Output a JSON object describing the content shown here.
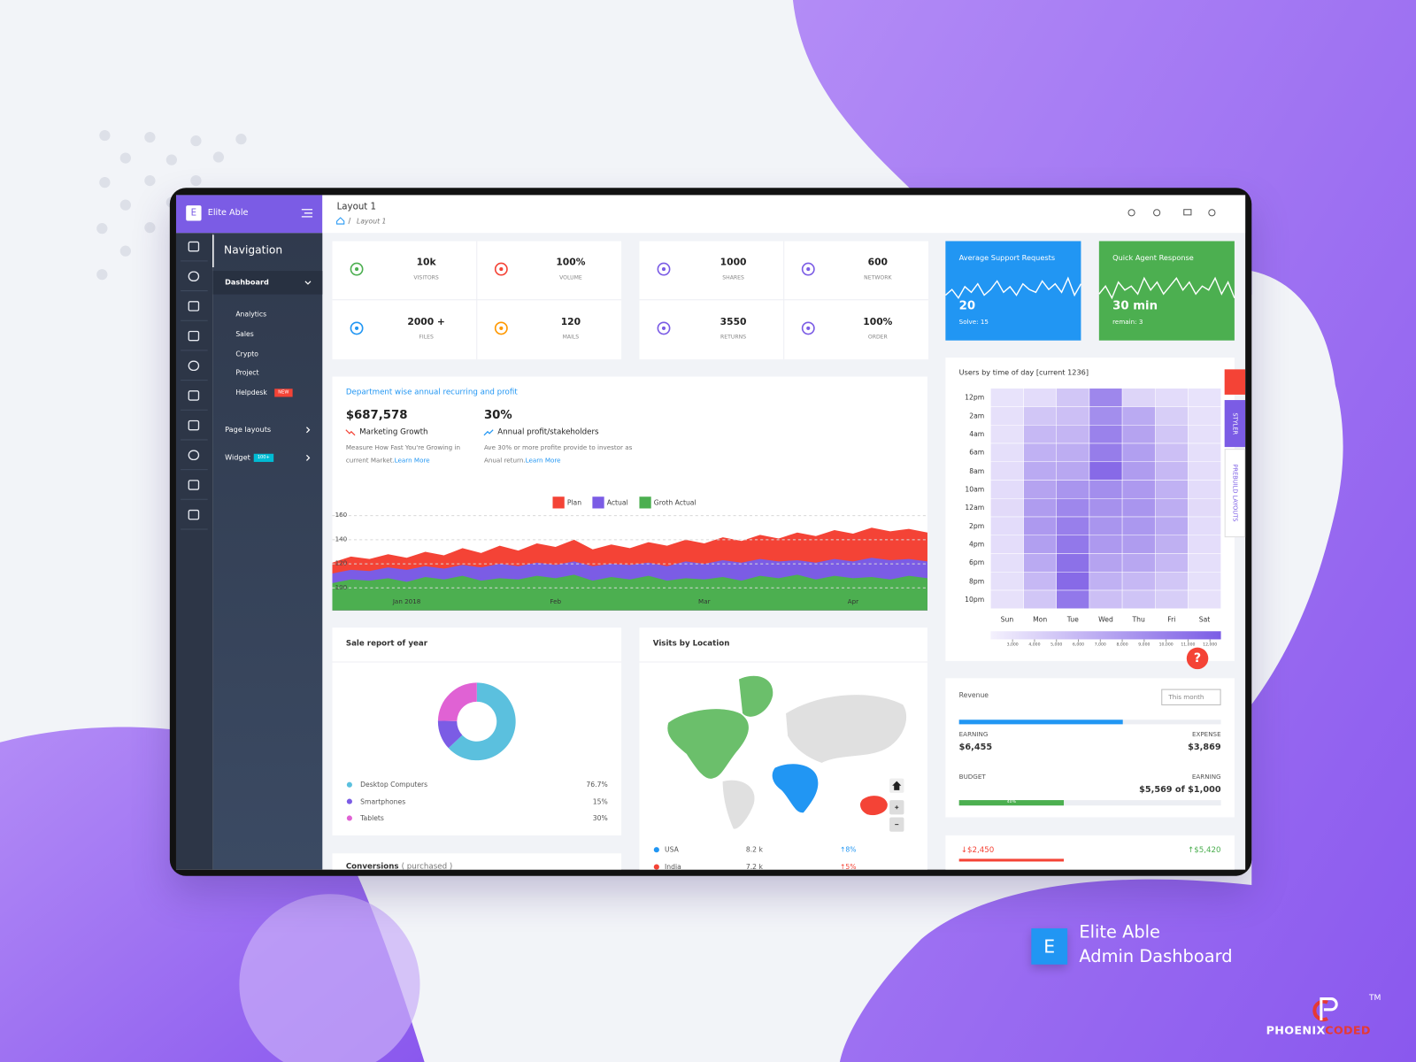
{
  "brand": {
    "logo": "E",
    "name": "Elite Able"
  },
  "header": {
    "title": "Layout 1",
    "breadcrumb": "Layout 1"
  },
  "sidebar": {
    "heading": "Navigation",
    "menu": [
      {
        "label": "Dashboard"
      },
      {
        "label": "Page layouts"
      },
      {
        "label": "Widget",
        "badge": "100+"
      }
    ],
    "submenu": [
      {
        "label": "Analytics"
      },
      {
        "label": "Sales"
      },
      {
        "label": "Crypto"
      },
      {
        "label": "Project"
      },
      {
        "label": "Helpdesk",
        "badge": "NEW"
      }
    ]
  },
  "stats": [
    {
      "value": "10k",
      "label": "VISITORS",
      "color": "#4caf50"
    },
    {
      "value": "100%",
      "label": "VOLUME",
      "color": "#f44336"
    },
    {
      "value": "1000",
      "label": "SHARES",
      "color": "#7b5ce5"
    },
    {
      "value": "600",
      "label": "NETWORK",
      "color": "#7b5ce5"
    },
    {
      "value": "2000 +",
      "label": "FILES",
      "color": "#2196f3"
    },
    {
      "value": "120",
      "label": "MAILS",
      "color": "#ff9800"
    },
    {
      "value": "3550",
      "label": "RETURNS",
      "color": "#7b5ce5"
    },
    {
      "value": "100%",
      "label": "ORDER",
      "color": "#7b5ce5"
    }
  ],
  "support_cards": [
    {
      "title": "Average Support Requests",
      "value": "20",
      "note": "Solve: 15",
      "color": "#2196f3",
      "trend": [
        14,
        16,
        13,
        17,
        15,
        18,
        14,
        16,
        19,
        15,
        17,
        14,
        18,
        16,
        15,
        19,
        16,
        18,
        15,
        20,
        14,
        18
      ]
    },
    {
      "title": "Quick Agent Response",
      "value": "30 min",
      "note": "remain: 3",
      "color": "#4caf50",
      "trend": [
        15,
        17,
        14,
        18,
        16,
        17,
        15,
        19,
        16,
        18,
        15,
        17,
        19,
        16,
        18,
        15,
        17,
        16,
        19,
        15,
        18,
        14
      ]
    }
  ],
  "growth_card": {
    "title": "Department wise annual recurring and profit",
    "items": [
      {
        "value": "$687,578",
        "label": "Marketing Growth",
        "description": "Measure How Fast You're Growing in current Market.",
        "link": "Learn More"
      },
      {
        "value": "30%",
        "label": "Annual profit/stakeholders",
        "description": "Ave 30% or more profite provide to investor as Anual return.",
        "link": "Learn More"
      }
    ],
    "chart": {
      "type": "area",
      "categories": [
        null,
        null,
        null,
        null,
        "Jan 2018",
        null,
        null,
        null,
        null,
        null,
        null,
        null,
        "Feb",
        null,
        null,
        null,
        null,
        null,
        null,
        null,
        "Mar",
        null,
        null,
        null,
        null,
        null,
        null,
        null,
        "Apr",
        null,
        null,
        null,
        null
      ],
      "series": [
        {
          "name": "Plan",
          "color": "#f44336",
          "values": [
            121,
            126,
            124,
            128,
            125,
            130,
            127,
            133,
            129,
            135,
            131,
            137,
            134,
            140,
            132,
            136,
            133,
            138,
            135,
            140,
            137,
            142,
            139,
            144,
            141,
            146,
            143,
            148,
            145,
            150,
            147,
            149,
            146
          ]
        },
        {
          "name": "Actual",
          "color": "#7b5ce5",
          "values": [
            112,
            115,
            114,
            117,
            115,
            118,
            116,
            119,
            117,
            120,
            118,
            121,
            119,
            122,
            118,
            120,
            119,
            121,
            118,
            122,
            120,
            123,
            121,
            124,
            122,
            123,
            121,
            124,
            122,
            125,
            123,
            124,
            122
          ]
        },
        {
          "name": "Groth Actual",
          "color": "#4caf50",
          "values": [
            104,
            107,
            106,
            108,
            105,
            109,
            107,
            110,
            106,
            108,
            107,
            110,
            108,
            111,
            106,
            109,
            107,
            110,
            106,
            108,
            107,
            109,
            106,
            110,
            108,
            111,
            107,
            110,
            108,
            109,
            107,
            110,
            108
          ]
        }
      ],
      "ylim": [
        100,
        160
      ],
      "yticks": [
        100,
        120,
        140,
        160
      ],
      "grid": true
    }
  },
  "heatmap_card": {
    "chart": {
      "type": "heatmap",
      "title": "Users by time of day [current 1236]",
      "rows": [
        "12pm",
        "2am",
        "4am",
        "6am",
        "8am",
        "10am",
        "12am",
        "2pm",
        "4pm",
        "6pm",
        "8pm",
        "10pm"
      ],
      "columns": [
        "Sun",
        "Mon",
        "Tue",
        "Wed",
        "Thu",
        "Fri",
        "Sat"
      ],
      "values": [
        [
          3000,
          3500,
          5000,
          9500,
          4000,
          3500,
          3000
        ],
        [
          3200,
          5000,
          5500,
          9000,
          7000,
          4500,
          3100
        ],
        [
          3100,
          6000,
          6200,
          9800,
          7500,
          5000,
          3200
        ],
        [
          3300,
          6500,
          6800,
          10200,
          7800,
          5500,
          3300
        ],
        [
          3400,
          7000,
          7200,
          11500,
          8000,
          6000,
          3400
        ],
        [
          3500,
          7500,
          8500,
          9000,
          8200,
          6500,
          3500
        ],
        [
          3600,
          8000,
          9500,
          8800,
          8500,
          6800,
          3600
        ],
        [
          3500,
          8200,
          10000,
          8500,
          8300,
          7000,
          3500
        ],
        [
          3400,
          7800,
          10500,
          8200,
          8000,
          6600,
          3400
        ],
        [
          3300,
          7000,
          11000,
          7500,
          7200,
          6000,
          3300
        ],
        [
          3200,
          6000,
          11500,
          6500,
          6000,
          5000,
          3200
        ],
        [
          3100,
          5000,
          10500,
          5500,
          5200,
          4500,
          3100
        ]
      ],
      "color": "#7b5ce5",
      "scale_lim": [
        2000,
        12500
      ],
      "scale_ticks": [
        {
          "value": 3000,
          "label": "3,000"
        },
        {
          "value": 4000,
          "label": "4,000"
        },
        {
          "value": 5000,
          "label": "5,000"
        },
        {
          "value": 6000,
          "label": "6,000"
        },
        {
          "value": 7000,
          "label": "7,000"
        },
        {
          "value": 8000,
          "label": "8,000"
        },
        {
          "value": 9000,
          "label": "9,000"
        },
        {
          "value": 10000,
          "label": "10,000"
        },
        {
          "value": 11000,
          "label": "11,000"
        },
        {
          "value": 12000,
          "label": "12,000"
        }
      ]
    }
  },
  "sale_card": {
    "chart": {
      "type": "pie",
      "title": "Sale report of year",
      "categories": [
        "Desktop Computers",
        "Smartphones",
        "Tablets"
      ],
      "values": [
        76.7,
        15,
        30
      ],
      "value_labels": [
        "76.7%",
        "15%",
        "30%"
      ],
      "colors": [
        "#5bc0de",
        "#7b5ce5",
        "#e062d4"
      ]
    }
  },
  "location_card": {
    "title": "Visits by Location",
    "rows": [
      {
        "country": "USA",
        "visits": "8.2 k",
        "change": "↑8%",
        "color": "#2196f3"
      },
      {
        "country": "India",
        "visits": "7.2 k",
        "change": "↑5%",
        "color": "#f44336"
      }
    ]
  },
  "revenue_card": {
    "title": "Revenue",
    "period": "This month",
    "earning": {
      "label": "EARNING",
      "value": 6455,
      "value_label": "$6,455"
    },
    "expense": {
      "label": "EXPENSE",
      "value": 3869,
      "value_label": "$3,869"
    },
    "budget": {
      "label": "BUDGET",
      "earning_label": "EARNING",
      "amount": "$5,569 of $1,000",
      "progress": 40,
      "progress_label": "40%"
    }
  },
  "balance_card": {
    "down": "↓$2,450",
    "up": "↑$5,420"
  },
  "conversions_card": {
    "title": "Conversions",
    "subtitle": "( purchased )"
  },
  "styler": {
    "tab": "STYLER",
    "layouts": "PREBUILD LAYOUTS",
    "help": "?"
  },
  "product": {
    "logo": "E",
    "line1": "Elite Able",
    "line2": "Admin Dashboard"
  },
  "company": {
    "name_a": "PHOENIX",
    "name_b": "CODED",
    "tm": "TM"
  }
}
